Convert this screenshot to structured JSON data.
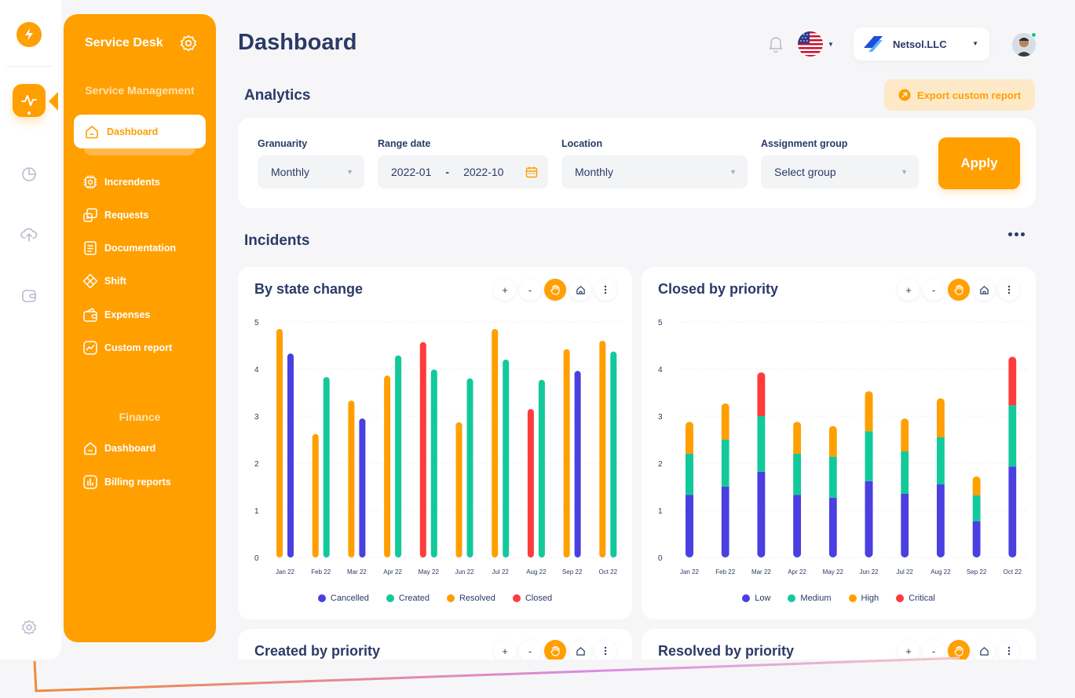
{
  "colors": {
    "accent": "#ff9f00",
    "navy": "#2b3a67",
    "blue": "#4a3fe0",
    "green": "#12c99b",
    "orange": "#ff9f00",
    "red": "#ff3b3b"
  },
  "sidebar": {
    "title": "Service Desk",
    "section_service": "Service Management",
    "active_item": "Dashboard",
    "items": [
      "Increndents",
      "Requests",
      "Documentation",
      "Shift",
      "Expenses",
      "Custom report"
    ],
    "section_finance": "Finance",
    "finance_items": [
      "Dashboard",
      "Billing reports"
    ]
  },
  "header": {
    "title": "Dashboard",
    "company": "Netsol.LLC"
  },
  "analytics": {
    "title": "Analytics",
    "export_label": "Export custom report",
    "granularity_label": "Granuarity",
    "granularity_value": "Monthly",
    "range_label": "Range date",
    "range_from": "2022-01",
    "range_sep": "-",
    "range_to": "2022-10",
    "location_label": "Location",
    "location_value": "Monthly",
    "group_label": "Assignment group",
    "group_placeholder": "Select group",
    "apply_label": "Apply"
  },
  "incidents": {
    "title": "Incidents"
  },
  "toolbar": {
    "plus": "+",
    "minus": "-"
  },
  "chart_data": [
    {
      "type": "bar",
      "title": "By state change",
      "categories": [
        "Jan 22",
        "Feb 22",
        "Mar 22",
        "Apr 22",
        "May 22",
        "Jun 22",
        "Jul 22",
        "Aug 22",
        "Sep 22",
        "Oct 22"
      ],
      "ylim": [
        0,
        5
      ],
      "yticks": [
        "0",
        "1",
        "2",
        "3",
        "4",
        "5"
      ],
      "bars": [
        [
          {
            "series": "Resolved",
            "value": 4.85
          },
          {
            "series": "Cancelled",
            "value": 4.33
          }
        ],
        [
          {
            "series": "Resolved",
            "value": 2.62
          },
          {
            "series": "Created",
            "value": 3.83
          }
        ],
        [
          {
            "series": "Resolved",
            "value": 3.33
          },
          {
            "series": "Cancelled",
            "value": 2.95
          }
        ],
        [
          {
            "series": "Resolved",
            "value": 3.86
          },
          {
            "series": "Created",
            "value": 4.29
          }
        ],
        [
          {
            "series": "Closed",
            "value": 4.57
          },
          {
            "series": "Created",
            "value": 3.99
          }
        ],
        [
          {
            "series": "Resolved",
            "value": 2.87
          },
          {
            "series": "Created",
            "value": 3.8
          }
        ],
        [
          {
            "series": "Resolved",
            "value": 4.85
          },
          {
            "series": "Created",
            "value": 4.2
          }
        ],
        [
          {
            "series": "Closed",
            "value": 3.15
          },
          {
            "series": "Created",
            "value": 3.77
          }
        ],
        [
          {
            "series": "Resolved",
            "value": 4.42
          },
          {
            "series": "Cancelled",
            "value": 3.96
          }
        ],
        [
          {
            "series": "Resolved",
            "value": 4.6
          },
          {
            "series": "Created",
            "value": 4.37
          }
        ]
      ],
      "legend": [
        {
          "name": "Cancelled",
          "color": "#4a3fe0"
        },
        {
          "name": "Created",
          "color": "#12c99b"
        },
        {
          "name": "Resolved",
          "color": "#ff9f00"
        },
        {
          "name": "Closed",
          "color": "#ff3b3b"
        }
      ]
    },
    {
      "type": "bar",
      "stacked": true,
      "title": "Closed by priority",
      "categories": [
        "Jan 22",
        "Feb 22",
        "Mar 22",
        "Apr 22",
        "May 22",
        "Jun 22",
        "Jul 22",
        "Aug 22",
        "Sep 22",
        "Oct 22"
      ],
      "ylim": [
        0,
        5
      ],
      "yticks": [
        "0",
        "1",
        "2",
        "3",
        "4",
        "5"
      ],
      "series": [
        {
          "name": "Low",
          "color": "#4a3fe0",
          "values": [
            1.33,
            1.5,
            1.82,
            1.33,
            1.27,
            1.62,
            1.35,
            1.55,
            0.77,
            1.93
          ]
        },
        {
          "name": "Medium",
          "color": "#12c99b",
          "values": [
            0.87,
            1.0,
            1.18,
            0.87,
            0.87,
            1.06,
            0.9,
            1.0,
            0.55,
            1.3
          ]
        },
        {
          "name": "High",
          "color": "#ff9f00",
          "values": [
            0.68,
            0.77,
            0.0,
            0.68,
            0.65,
            0.85,
            0.7,
            0.83,
            0.4,
            0.0
          ]
        },
        {
          "name": "Critical",
          "color": "#ff3b3b",
          "values": [
            0.0,
            0.0,
            0.93,
            0.0,
            0.0,
            0.0,
            0.0,
            0.0,
            0.0,
            1.03
          ]
        }
      ]
    }
  ],
  "bottom_cards": {
    "created_title": "Created by priority",
    "resolved_title": "Resolved by priority"
  }
}
